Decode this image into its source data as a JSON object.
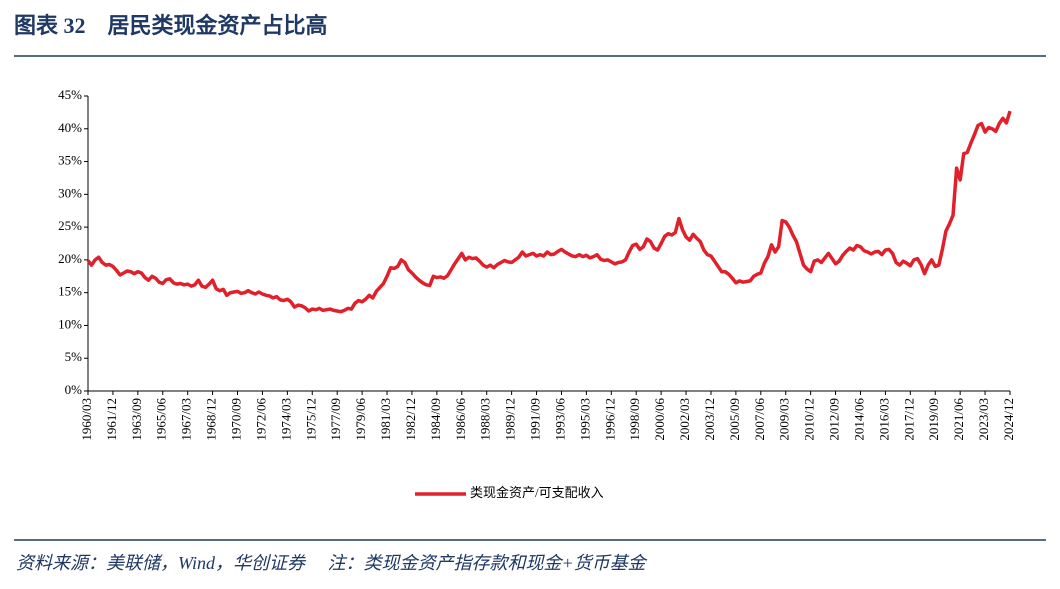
{
  "chart_data": {
    "type": "line",
    "title": "图表 32　居民类现金资产占比高",
    "source": "资料来源：美联储，Wind，华创证券　 注：类现金资产指存款和现金+货币基金",
    "categories": [
      "1960/03",
      null,
      null,
      null,
      null,
      null,
      null,
      "1961/12",
      null,
      null,
      null,
      null,
      null,
      null,
      "1963/09",
      null,
      null,
      null,
      null,
      null,
      null,
      "1965/06",
      null,
      null,
      null,
      null,
      null,
      null,
      "1967/03",
      null,
      null,
      null,
      null,
      null,
      null,
      "1968/12",
      null,
      null,
      null,
      null,
      null,
      null,
      "1970/09",
      null,
      null,
      null,
      null,
      null,
      null,
      "1972/06",
      null,
      null,
      null,
      null,
      null,
      null,
      "1974/03",
      null,
      null,
      null,
      null,
      null,
      null,
      "1975/12",
      null,
      null,
      null,
      null,
      null,
      null,
      "1977/09",
      null,
      null,
      null,
      null,
      null,
      null,
      "1979/06",
      null,
      null,
      null,
      null,
      null,
      null,
      "1981/03",
      null,
      null,
      null,
      null,
      null,
      null,
      "1982/12",
      null,
      null,
      null,
      null,
      null,
      null,
      "1984/09",
      null,
      null,
      null,
      null,
      null,
      null,
      "1986/06",
      null,
      null,
      null,
      null,
      null,
      null,
      "1988/03",
      null,
      null,
      null,
      null,
      null,
      null,
      "1989/12",
      null,
      null,
      null,
      null,
      null,
      null,
      "1991/09",
      null,
      null,
      null,
      null,
      null,
      null,
      "1993/06",
      null,
      null,
      null,
      null,
      null,
      null,
      "1995/03",
      null,
      null,
      null,
      null,
      null,
      null,
      "1996/12",
      null,
      null,
      null,
      null,
      null,
      null,
      "1998/09",
      null,
      null,
      null,
      null,
      null,
      null,
      "2000/06",
      null,
      null,
      null,
      null,
      null,
      null,
      "2002/03",
      null,
      null,
      null,
      null,
      null,
      null,
      "2003/12",
      null,
      null,
      null,
      null,
      null,
      null,
      "2005/09",
      null,
      null,
      null,
      null,
      null,
      null,
      "2007/06",
      null,
      null,
      null,
      null,
      null,
      null,
      "2009/03",
      null,
      null,
      null,
      null,
      null,
      null,
      "2010/12",
      null,
      null,
      null,
      null,
      null,
      null,
      "2012/09",
      null,
      null,
      null,
      null,
      null,
      null,
      "2014/06",
      null,
      null,
      null,
      null,
      null,
      null,
      "2016/03",
      null,
      null,
      null,
      null,
      null,
      null,
      "2017/12",
      null,
      null,
      null,
      null,
      null,
      null,
      "2019/09",
      null,
      null,
      null,
      null,
      null,
      null,
      "2021/06",
      null,
      null,
      null,
      null,
      null,
      null,
      "2023/03",
      null,
      null,
      null,
      null,
      null,
      null,
      "2024/12"
    ],
    "series": [
      {
        "name": "类现金资产/可支配收入",
        "color": "#e0202a",
        "values": [
          19.9,
          19.2,
          20.0,
          20.4,
          19.6,
          19.2,
          19.3,
          19.0,
          18.4,
          17.7,
          18.0,
          18.3,
          18.2,
          17.9,
          18.2,
          18.0,
          17.3,
          16.9,
          17.5,
          17.2,
          16.6,
          16.4,
          17.0,
          17.1,
          16.5,
          16.3,
          16.4,
          16.2,
          16.3,
          16.0,
          16.2,
          16.9,
          16.0,
          15.8,
          16.3,
          16.9,
          15.6,
          15.3,
          15.5,
          14.6,
          15.0,
          15.1,
          15.2,
          14.9,
          15.0,
          15.3,
          15.0,
          14.8,
          15.1,
          14.8,
          14.6,
          14.5,
          14.2,
          14.4,
          13.9,
          13.8,
          14.0,
          13.6,
          12.8,
          13.1,
          13.0,
          12.7,
          12.2,
          12.5,
          12.4,
          12.6,
          12.3,
          12.4,
          12.5,
          12.3,
          12.2,
          12.1,
          12.3,
          12.6,
          12.5,
          13.4,
          13.8,
          13.6,
          14.0,
          14.6,
          14.2,
          15.2,
          15.8,
          16.4,
          17.5,
          18.8,
          18.7,
          19.0,
          20.0,
          19.6,
          18.5,
          18.0,
          17.4,
          16.9,
          16.5,
          16.2,
          16.1,
          17.5,
          17.3,
          17.4,
          17.2,
          17.6,
          18.5,
          19.4,
          20.2,
          21.0,
          20.0,
          20.4,
          20.2,
          20.3,
          19.8,
          19.2,
          18.9,
          19.2,
          18.8,
          19.3,
          19.6,
          19.9,
          19.7,
          19.6,
          20.0,
          20.4,
          21.2,
          20.6,
          20.8,
          21.0,
          20.6,
          20.8,
          20.6,
          21.2,
          20.8,
          20.9,
          21.3,
          21.6,
          21.2,
          20.9,
          20.6,
          20.5,
          20.8,
          20.5,
          20.7,
          20.3,
          20.5,
          20.8,
          20.1,
          19.9,
          20.0,
          19.7,
          19.4,
          19.6,
          19.7,
          20.0,
          21.2,
          22.2,
          22.4,
          21.6,
          22.0,
          23.2,
          22.8,
          21.8,
          21.5,
          22.5,
          23.6,
          24.0,
          23.8,
          24.2,
          26.3,
          24.6,
          23.5,
          23.0,
          23.9,
          23.3,
          22.8,
          21.5,
          20.8,
          20.6,
          19.8,
          19.0,
          18.2,
          18.2,
          17.8,
          17.2,
          16.5,
          16.8,
          16.6,
          16.7,
          16.8,
          17.5,
          17.8,
          18.0,
          19.5,
          20.5,
          22.3,
          21.2,
          22.0,
          26.0,
          25.8,
          25.0,
          23.8,
          22.8,
          21.0,
          19.2,
          18.6,
          18.2,
          19.8,
          20.0,
          19.6,
          20.3,
          21.0,
          20.2,
          19.4,
          19.8,
          20.7,
          21.3,
          21.8,
          21.5,
          22.2,
          22.0,
          21.4,
          21.2,
          20.9,
          21.2,
          21.3,
          20.8,
          21.5,
          21.6,
          21.0,
          19.6,
          19.2,
          19.8,
          19.5,
          19.1,
          20.0,
          20.2,
          19.3,
          17.9,
          19.2,
          20.0,
          19.0,
          19.2,
          21.6,
          24.4,
          25.5,
          26.8,
          34.0,
          32.2,
          36.2,
          36.4,
          37.8,
          39.1,
          40.5,
          40.8,
          39.5,
          40.2,
          40.0,
          39.6,
          40.8,
          41.6,
          40.9,
          42.7
        ]
      }
    ],
    "ylim": [
      0,
      45
    ],
    "yticks": [
      {
        "value": 0,
        "label": "0%"
      },
      {
        "value": 5,
        "label": "5%"
      },
      {
        "value": 10,
        "label": "10%"
      },
      {
        "value": 15,
        "label": "15%"
      },
      {
        "value": 20,
        "label": "20%"
      },
      {
        "value": 25,
        "label": "25%"
      },
      {
        "value": 30,
        "label": "30%"
      },
      {
        "value": 35,
        "label": "35%"
      },
      {
        "value": 40,
        "label": "40%"
      },
      {
        "value": 45,
        "label": "45%"
      }
    ],
    "grid": false,
    "legend": "bottom"
  }
}
